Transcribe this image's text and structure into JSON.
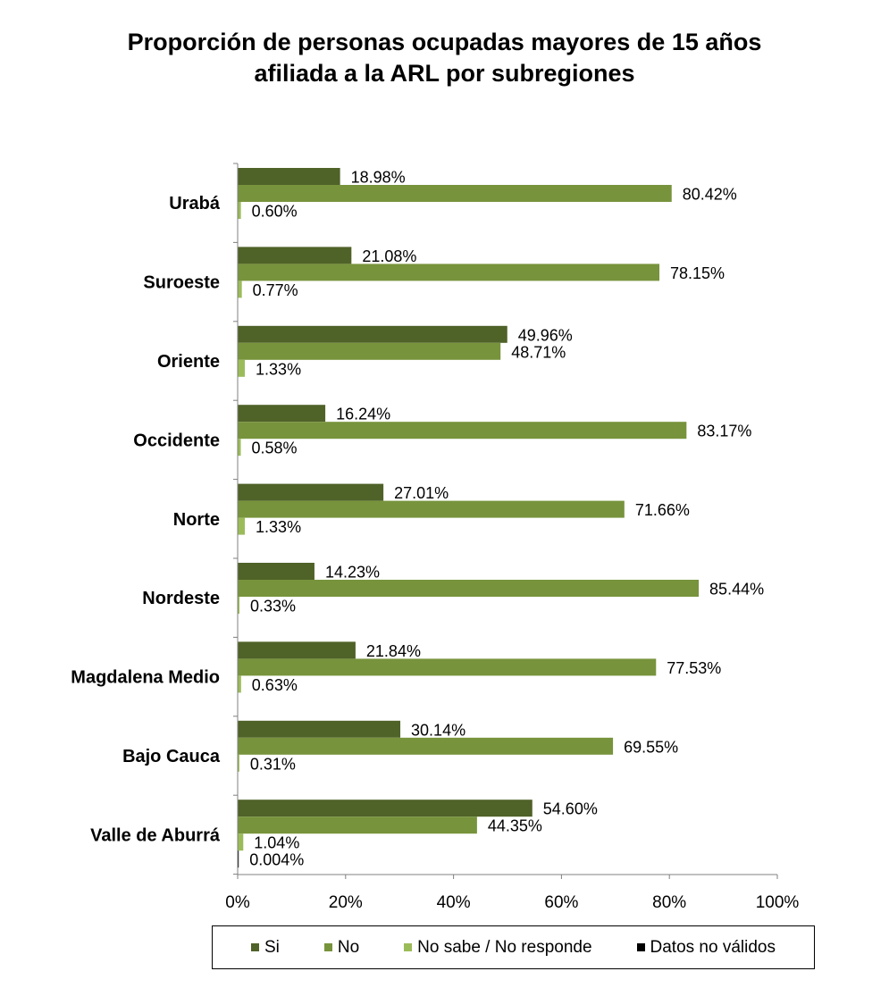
{
  "title": {
    "line1": "Proporción de personas ocupadas mayores de 15 años",
    "line2": "afiliada a la ARL  por subregiones"
  },
  "chart_data": {
    "type": "bar",
    "orientation": "horizontal",
    "title": "Proporción de personas ocupadas mayores de 15 años afiliada a la ARL  por subregiones",
    "categories": [
      "Urabá",
      "Suroeste",
      "Oriente",
      "Occidente",
      "Norte",
      "Nordeste",
      "Magdalena Medio",
      "Bajo Cauca",
      "Valle de Aburrá"
    ],
    "series": [
      {
        "name": "Si",
        "color": "#4f6228",
        "values": [
          18.98,
          21.08,
          49.96,
          16.24,
          27.01,
          14.23,
          21.84,
          30.14,
          54.6
        ],
        "labels": [
          "18.98%",
          "21.08%",
          "49.96%",
          "16.24%",
          "27.01%",
          "14.23%",
          "21.84%",
          "30.14%",
          "54.60%"
        ]
      },
      {
        "name": "No",
        "color": "#77933c",
        "values": [
          80.42,
          78.15,
          48.71,
          83.17,
          71.66,
          85.44,
          77.53,
          69.55,
          44.35
        ],
        "labels": [
          "80.42%",
          "78.15%",
          "48.71%",
          "83.17%",
          "71.66%",
          "85.44%",
          "77.53%",
          "69.55%",
          "44.35%"
        ]
      },
      {
        "name": "No sabe / No responde",
        "color": "#9bbb59",
        "values": [
          0.6,
          0.77,
          1.33,
          0.58,
          1.33,
          0.33,
          0.63,
          0.31,
          1.04
        ],
        "labels": [
          "0.60%",
          "0.77%",
          "1.33%",
          "0.58%",
          "1.33%",
          "0.33%",
          "0.63%",
          "0.31%",
          "1.04%"
        ]
      },
      {
        "name": "Datos no válidos",
        "color": "#000000",
        "values": [
          null,
          null,
          null,
          null,
          null,
          null,
          null,
          null,
          0.004
        ],
        "labels": [
          "",
          "",
          "",
          "",
          "",
          "",
          "",
          "",
          "0.004%"
        ]
      }
    ],
    "xlim": [
      0,
      100
    ],
    "xticks": [
      "0%",
      "20%",
      "40%",
      "60%",
      "80%",
      "100%"
    ],
    "grid": false,
    "legend_position": "bottom"
  }
}
